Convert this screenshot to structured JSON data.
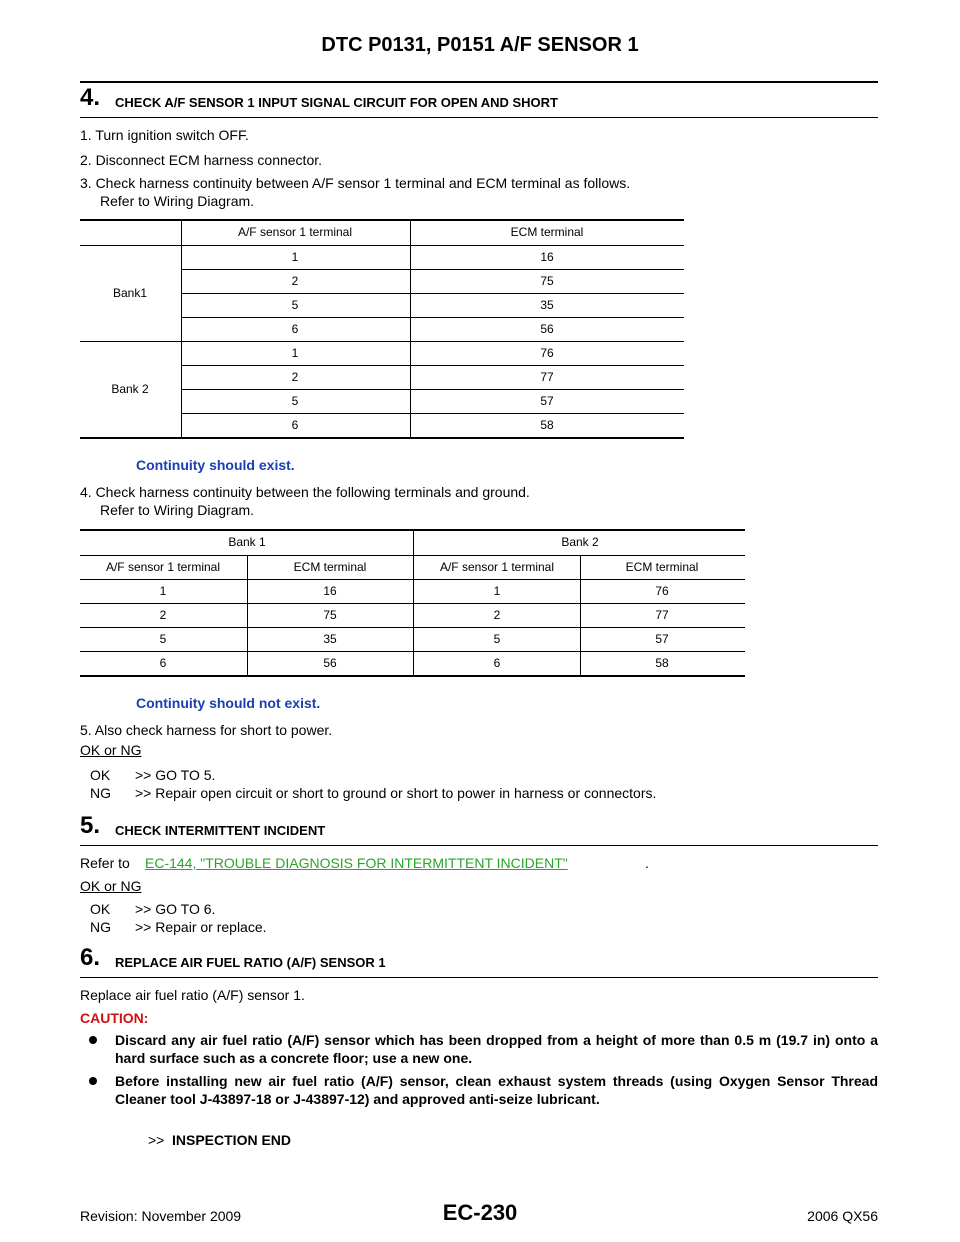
{
  "header": {
    "title": "DTC P0131, P0151 A/F SENSOR 1"
  },
  "step4": {
    "number": "4.",
    "heading": "CHECK A/F SENSOR 1 INPUT SIGNAL CIRCUIT FOR OPEN AND SHORT",
    "items": [
      {
        "text": "1. Turn ignition switch OFF."
      },
      {
        "text": "2. Disconnect ECM harness connector."
      },
      {
        "text": "3. Check harness continuity between A/F sensor 1 terminal and ECM terminal as follows.",
        "sub": "Refer to Wiring Diagram."
      }
    ],
    "table1": {
      "headers": [
        "A/F sensor 1 terminal",
        "ECM terminal"
      ],
      "groups": [
        {
          "label": "Bank1",
          "rows": [
            [
              1,
              16
            ],
            [
              2,
              75
            ],
            [
              5,
              35
            ],
            [
              6,
              56
            ]
          ]
        },
        {
          "label": "Bank 2",
          "rows": [
            [
              1,
              76
            ],
            [
              2,
              77
            ],
            [
              5,
              57
            ],
            [
              6,
              58
            ]
          ]
        }
      ]
    },
    "note1": "Continuity should exist.",
    "item4": {
      "text": "4. Check harness continuity between the following terminals and ground.",
      "sub": "Refer to Wiring Diagram."
    },
    "table2": {
      "group_headers": [
        "Bank 1",
        "Bank 2"
      ],
      "headers": [
        "A/F sensor 1 terminal",
        "ECM terminal",
        "A/F sensor 1 terminal",
        "ECM terminal"
      ],
      "rows": [
        [
          1,
          16,
          1,
          76
        ],
        [
          2,
          75,
          2,
          77
        ],
        [
          5,
          35,
          5,
          57
        ],
        [
          6,
          56,
          6,
          58
        ]
      ]
    },
    "note2": "Continuity should not exist.",
    "item5": "5. Also check harness for short to power.",
    "result_label": "OK or NG",
    "results": [
      {
        "code": "OK",
        "text": ">> GO TO 5."
      },
      {
        "code": "NG",
        "text": ">> Repair open circuit or short to ground or short to power in harness or connectors."
      }
    ]
  },
  "step5": {
    "number": "5.",
    "heading": "CHECK INTERMITTENT INCIDENT",
    "refer_prefix": "Refer to",
    "link": "EC-144, \"TROUBLE DIAGNOSIS FOR INTERMITTENT INCIDENT\"",
    "refer_suffix": ".",
    "result_label": "OK or NG",
    "results": [
      {
        "code": "OK",
        "text": ">> GO TO 6."
      },
      {
        "code": "NG",
        "text": ">> Repair or replace."
      }
    ]
  },
  "step6": {
    "number": "6.",
    "heading": "REPLACE AIR FUEL RATIO (A/F) SENSOR 1",
    "text": "Replace air fuel ratio (A/F) sensor 1.",
    "caution": "CAUTION:",
    "bullets": [
      "Discard any air fuel ratio (A/F) sensor which has been dropped from a height of more than 0.5 m (19.7 in) onto a hard surface such as a concrete floor; use a new one.",
      "Before installing new air fuel ratio (A/F) sensor, clean exhaust system threads (using Oxygen Sensor Thread Cleaner tool J-43897-18 or J-43897-12) and approved anti-seize lubricant."
    ],
    "end_prefix": ">>",
    "end": "INSPECTION END"
  },
  "footer": {
    "revision": "Revision: November 2009",
    "page": "EC-230",
    "model": "2006 QX56"
  }
}
